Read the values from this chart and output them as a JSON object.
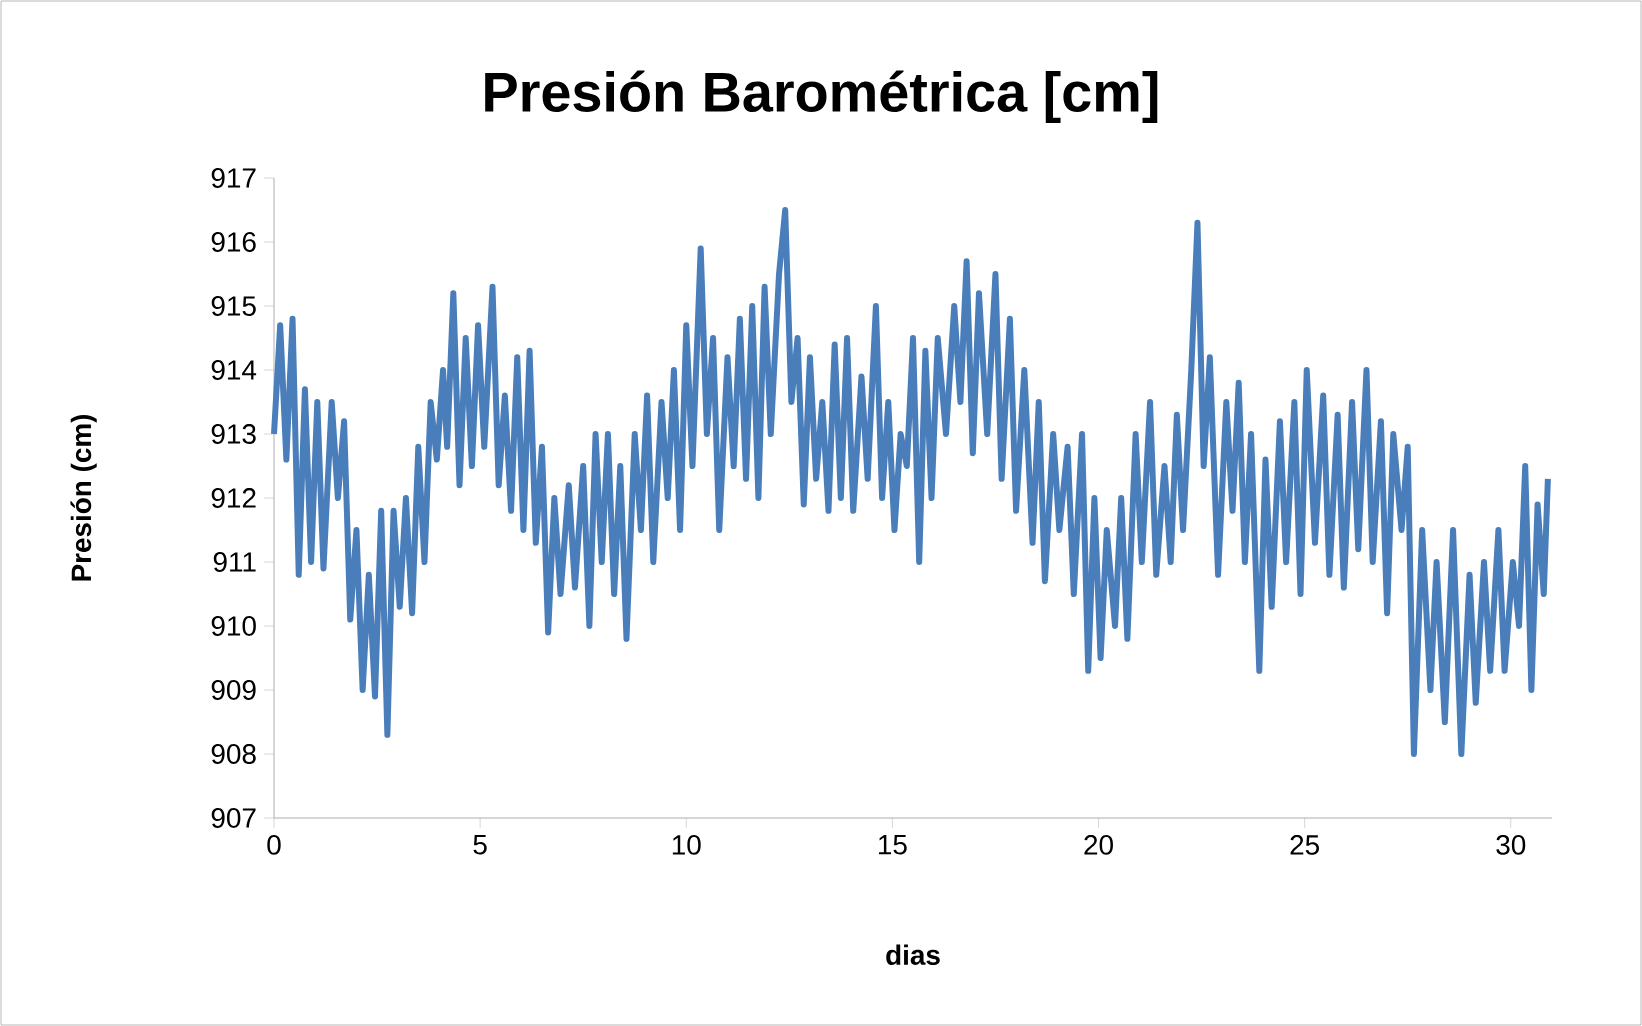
{
  "chart_data": {
    "type": "line",
    "title": "Presión Barométrica [cm]",
    "xlabel": "dias",
    "ylabel": "Presión (cm)",
    "xlim": [
      0,
      31
    ],
    "xticks": [
      0,
      5,
      10,
      15,
      20,
      25,
      30
    ],
    "ylim": [
      907,
      917
    ],
    "yticks": [
      907,
      908,
      909,
      910,
      911,
      912,
      913,
      914,
      915,
      916,
      917
    ],
    "grid": false,
    "marker": "none",
    "line_style": "solid",
    "series": [
      {
        "color": "#4a7ebb",
        "x": [
          0,
          0.15,
          0.3,
          0.45,
          0.6,
          0.75,
          0.9,
          1.05,
          1.2,
          1.4,
          1.55,
          1.7,
          1.85,
          2.0,
          2.15,
          2.3,
          2.45,
          2.6,
          2.75,
          2.9,
          3.05,
          3.2,
          3.35,
          3.5,
          3.65,
          3.8,
          3.95,
          4.1,
          4.2,
          4.35,
          4.5,
          4.65,
          4.8,
          4.95,
          5.1,
          5.3,
          5.45,
          5.6,
          5.75,
          5.9,
          6.05,
          6.2,
          6.35,
          6.5,
          6.65,
          6.8,
          6.95,
          7.15,
          7.3,
          7.5,
          7.65,
          7.8,
          7.95,
          8.1,
          8.25,
          8.4,
          8.55,
          8.75,
          8.9,
          9.05,
          9.2,
          9.4,
          9.55,
          9.7,
          9.85,
          10.0,
          10.15,
          10.35,
          10.5,
          10.65,
          10.8,
          11.0,
          11.15,
          11.3,
          11.45,
          11.6,
          11.75,
          11.9,
          12.05,
          12.25,
          12.4,
          12.55,
          12.7,
          12.85,
          13.0,
          13.15,
          13.3,
          13.45,
          13.6,
          13.75,
          13.9,
          14.05,
          14.25,
          14.4,
          14.6,
          14.75,
          14.9,
          15.05,
          15.2,
          15.35,
          15.5,
          15.65,
          15.8,
          15.95,
          16.1,
          16.3,
          16.5,
          16.65,
          16.8,
          16.95,
          17.1,
          17.3,
          17.5,
          17.65,
          17.85,
          18.0,
          18.2,
          18.4,
          18.55,
          18.7,
          18.9,
          19.05,
          19.25,
          19.4,
          19.6,
          19.75,
          19.9,
          20.05,
          20.2,
          20.4,
          20.55,
          20.7,
          20.9,
          21.05,
          21.25,
          21.4,
          21.6,
          21.75,
          21.9,
          22.05,
          22.25,
          22.4,
          22.55,
          22.7,
          22.9,
          23.1,
          23.25,
          23.4,
          23.55,
          23.7,
          23.9,
          24.05,
          24.2,
          24.4,
          24.55,
          24.75,
          24.9,
          25.05,
          25.25,
          25.45,
          25.6,
          25.8,
          25.95,
          26.15,
          26.3,
          26.5,
          26.65,
          26.85,
          27.0,
          27.15,
          27.35,
          27.5,
          27.65,
          27.85,
          28.05,
          28.2,
          28.4,
          28.6,
          28.8,
          29.0,
          29.15,
          29.35,
          29.5,
          29.7,
          29.85,
          30.05,
          30.2,
          30.35,
          30.5,
          30.65,
          30.8,
          30.9
        ],
        "values": [
          913.0,
          914.7,
          912.6,
          914.8,
          910.8,
          913.7,
          911.0,
          913.5,
          910.9,
          913.5,
          912.0,
          913.2,
          910.1,
          911.5,
          909.0,
          910.8,
          908.9,
          911.8,
          908.3,
          911.8,
          910.3,
          912.0,
          910.2,
          912.8,
          911.0,
          913.5,
          912.6,
          914.0,
          912.8,
          915.2,
          912.2,
          914.5,
          912.5,
          914.7,
          912.8,
          915.3,
          912.2,
          913.6,
          911.8,
          914.2,
          911.5,
          914.3,
          911.3,
          912.8,
          909.9,
          912.0,
          910.5,
          912.2,
          910.6,
          912.5,
          910.0,
          913.0,
          911.0,
          913.0,
          910.5,
          912.5,
          909.8,
          913.0,
          911.5,
          913.6,
          911.0,
          913.5,
          912.0,
          914.0,
          911.5,
          914.7,
          912.5,
          915.9,
          913.0,
          914.5,
          911.5,
          914.2,
          912.5,
          914.8,
          912.3,
          915.0,
          912.0,
          915.3,
          913.0,
          915.5,
          916.5,
          913.5,
          914.5,
          911.9,
          914.2,
          912.3,
          913.5,
          911.8,
          914.4,
          912.0,
          914.5,
          911.8,
          913.9,
          912.3,
          915.0,
          912.0,
          913.5,
          911.5,
          913.0,
          912.5,
          914.5,
          911.0,
          914.3,
          912.0,
          914.5,
          913.0,
          915.0,
          913.5,
          915.7,
          912.7,
          915.2,
          913.0,
          915.5,
          912.3,
          914.8,
          911.8,
          914.0,
          911.3,
          913.5,
          910.7,
          913.0,
          911.5,
          912.8,
          910.5,
          913.0,
          909.3,
          912.0,
          909.5,
          911.5,
          910.0,
          912.0,
          909.8,
          913.0,
          911.0,
          913.5,
          910.8,
          912.5,
          911.0,
          913.3,
          911.5,
          914.0,
          916.3,
          912.5,
          914.2,
          910.8,
          913.5,
          911.8,
          913.8,
          911.0,
          913.0,
          909.3,
          912.6,
          910.3,
          913.2,
          911.0,
          913.5,
          910.5,
          914.0,
          911.3,
          913.6,
          910.8,
          913.3,
          910.6,
          913.5,
          911.2,
          914.0,
          911.0,
          913.2,
          910.2,
          913.0,
          911.5,
          912.8,
          908.0,
          911.5,
          909.0,
          911.0,
          908.5,
          911.5,
          908.0,
          910.8,
          908.8,
          911.0,
          909.3,
          911.5,
          909.3,
          911.0,
          910.0,
          912.5,
          909.0,
          911.9,
          910.5,
          912.3
        ]
      }
    ]
  }
}
